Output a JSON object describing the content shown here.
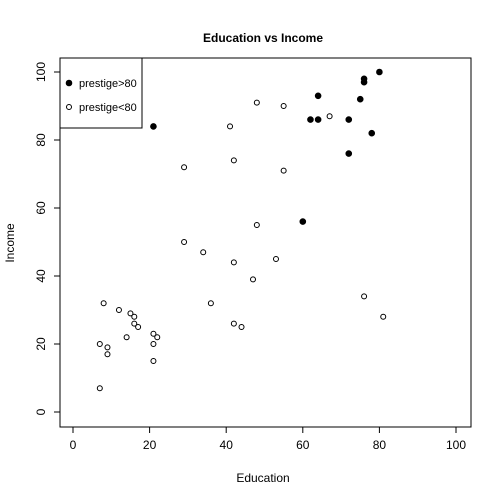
{
  "chart_data": {
    "type": "scatter",
    "title": "Education vs Income",
    "xlabel": "Education",
    "ylabel": "Income",
    "xlim": [
      0,
      100
    ],
    "ylim": [
      0,
      100
    ],
    "x_ticks": [
      0,
      20,
      40,
      60,
      80,
      100
    ],
    "y_ticks": [
      0,
      20,
      40,
      60,
      80,
      100
    ],
    "grid": false,
    "legend_position": "top-left",
    "series": [
      {
        "name": "prestige>80",
        "marker": "filled-circle",
        "color": "#000000",
        "points": [
          {
            "x": 21,
            "y": 84
          },
          {
            "x": 60,
            "y": 56
          },
          {
            "x": 62,
            "y": 86
          },
          {
            "x": 64,
            "y": 86
          },
          {
            "x": 64,
            "y": 93
          },
          {
            "x": 72,
            "y": 76
          },
          {
            "x": 72,
            "y": 86
          },
          {
            "x": 75,
            "y": 92
          },
          {
            "x": 76,
            "y": 97
          },
          {
            "x": 76,
            "y": 98
          },
          {
            "x": 78,
            "y": 82
          },
          {
            "x": 80,
            "y": 100
          }
        ]
      },
      {
        "name": "prestige<80",
        "marker": "open-circle",
        "color": "#000000",
        "points": [
          {
            "x": 7,
            "y": 7
          },
          {
            "x": 7,
            "y": 20
          },
          {
            "x": 8,
            "y": 32
          },
          {
            "x": 9,
            "y": 17
          },
          {
            "x": 9,
            "y": 19
          },
          {
            "x": 12,
            "y": 30
          },
          {
            "x": 14,
            "y": 22
          },
          {
            "x": 15,
            "y": 29
          },
          {
            "x": 16,
            "y": 26
          },
          {
            "x": 16,
            "y": 28
          },
          {
            "x": 17,
            "y": 25
          },
          {
            "x": 21,
            "y": 15
          },
          {
            "x": 21,
            "y": 20
          },
          {
            "x": 21,
            "y": 23
          },
          {
            "x": 22,
            "y": 22
          },
          {
            "x": 29,
            "y": 50
          },
          {
            "x": 29,
            "y": 72
          },
          {
            "x": 34,
            "y": 47
          },
          {
            "x": 36,
            "y": 32
          },
          {
            "x": 41,
            "y": 84
          },
          {
            "x": 42,
            "y": 26
          },
          {
            "x": 42,
            "y": 44
          },
          {
            "x": 42,
            "y": 74
          },
          {
            "x": 44,
            "y": 25
          },
          {
            "x": 47,
            "y": 39
          },
          {
            "x": 48,
            "y": 55
          },
          {
            "x": 48,
            "y": 91
          },
          {
            "x": 53,
            "y": 45
          },
          {
            "x": 55,
            "y": 71
          },
          {
            "x": 55,
            "y": 90
          },
          {
            "x": 67,
            "y": 87
          },
          {
            "x": 76,
            "y": 34
          },
          {
            "x": 81,
            "y": 28
          }
        ]
      }
    ]
  }
}
